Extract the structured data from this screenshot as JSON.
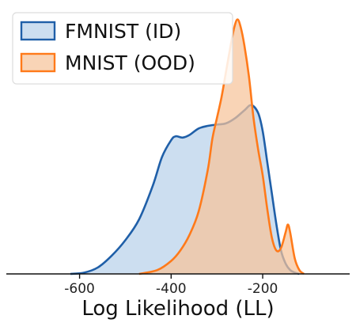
{
  "chart_data": {
    "type": "area",
    "xlabel": "Log Likelihood (LL)",
    "ylabel": "",
    "xlim": [
      -760,
      -10
    ],
    "ylim": [
      0,
      1.0
    ],
    "xticks": [
      -600,
      -400,
      -200
    ],
    "xtick_labels": [
      "-600",
      "-400",
      "-200"
    ],
    "grid": false,
    "legend_position": "top-left",
    "series": [
      {
        "name": "FMNIST (ID)",
        "line_color": "#1f5fa8",
        "fill_color": "#b9d1ea",
        "points": [
          [
            -620,
            0.0
          ],
          [
            -590,
            0.005
          ],
          [
            -560,
            0.025
          ],
          [
            -530,
            0.07
          ],
          [
            -500,
            0.13
          ],
          [
            -470,
            0.21
          ],
          [
            -440,
            0.34
          ],
          [
            -420,
            0.45
          ],
          [
            -400,
            0.515
          ],
          [
            -390,
            0.53
          ],
          [
            -375,
            0.525
          ],
          [
            -360,
            0.535
          ],
          [
            -340,
            0.56
          ],
          [
            -320,
            0.57
          ],
          [
            -300,
            0.575
          ],
          [
            -280,
            0.58
          ],
          [
            -260,
            0.6
          ],
          [
            -240,
            0.63
          ],
          [
            -225,
            0.65
          ],
          [
            -210,
            0.62
          ],
          [
            -200,
            0.55
          ],
          [
            -190,
            0.43
          ],
          [
            -180,
            0.31
          ],
          [
            -170,
            0.19
          ],
          [
            -160,
            0.09
          ],
          [
            -150,
            0.04
          ],
          [
            -140,
            0.015
          ],
          [
            -130,
            0.005
          ],
          [
            -120,
            0.0
          ]
        ]
      },
      {
        "name": "MNIST (OOD)",
        "line_color": "#ff7a1a",
        "fill_color": "#f7c49a",
        "points": [
          [
            -470,
            0.0
          ],
          [
            -430,
            0.015
          ],
          [
            -400,
            0.05
          ],
          [
            -380,
            0.09
          ],
          [
            -360,
            0.15
          ],
          [
            -340,
            0.24
          ],
          [
            -320,
            0.4
          ],
          [
            -310,
            0.52
          ],
          [
            -300,
            0.6
          ],
          [
            -290,
            0.68
          ],
          [
            -280,
            0.78
          ],
          [
            -270,
            0.88
          ],
          [
            -262,
            0.95
          ],
          [
            -255,
            0.98
          ],
          [
            -248,
            0.95
          ],
          [
            -240,
            0.88
          ],
          [
            -230,
            0.76
          ],
          [
            -220,
            0.6
          ],
          [
            -210,
            0.48
          ],
          [
            -200,
            0.38
          ],
          [
            -190,
            0.25
          ],
          [
            -180,
            0.14
          ],
          [
            -170,
            0.09
          ],
          [
            -160,
            0.1
          ],
          [
            -150,
            0.16
          ],
          [
            -145,
            0.19
          ],
          [
            -140,
            0.16
          ],
          [
            -130,
            0.06
          ],
          [
            -120,
            0.015
          ],
          [
            -110,
            0.0
          ]
        ]
      }
    ]
  }
}
